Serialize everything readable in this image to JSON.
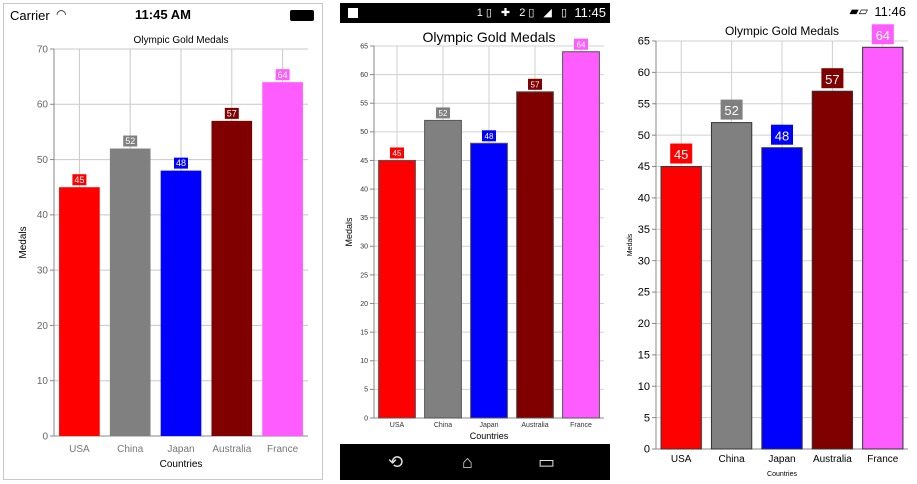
{
  "ios": {
    "carrier": "Carrier",
    "time": "11:45 AM",
    "wifi_icon": "wifi-icon",
    "battery_icon": "battery-icon"
  },
  "android": {
    "time": "11:45",
    "status_icons": "1▯ ✚ 2▯ ◢ ▯",
    "nav": {
      "back": "⟲",
      "home": "⌂",
      "recent": "▭"
    }
  },
  "windows": {
    "time": "11:46",
    "status_icon": "battery-icon"
  },
  "chart_data": {
    "type": "bar",
    "title": "Olympic Gold Medals",
    "xlabel": "Countries",
    "ylabel": "Medals",
    "categories": [
      "USA",
      "China",
      "Japan",
      "Australia",
      "France"
    ],
    "values": [
      45,
      52,
      48,
      57,
      64
    ],
    "colors": [
      "#ff0000",
      "#808080",
      "#0000ff",
      "#800000",
      "#ff5cff"
    ],
    "ios_ylim": [
      0,
      70
    ],
    "android_ylim": [
      0,
      65
    ],
    "windows_ylim": [
      0,
      65
    ]
  }
}
